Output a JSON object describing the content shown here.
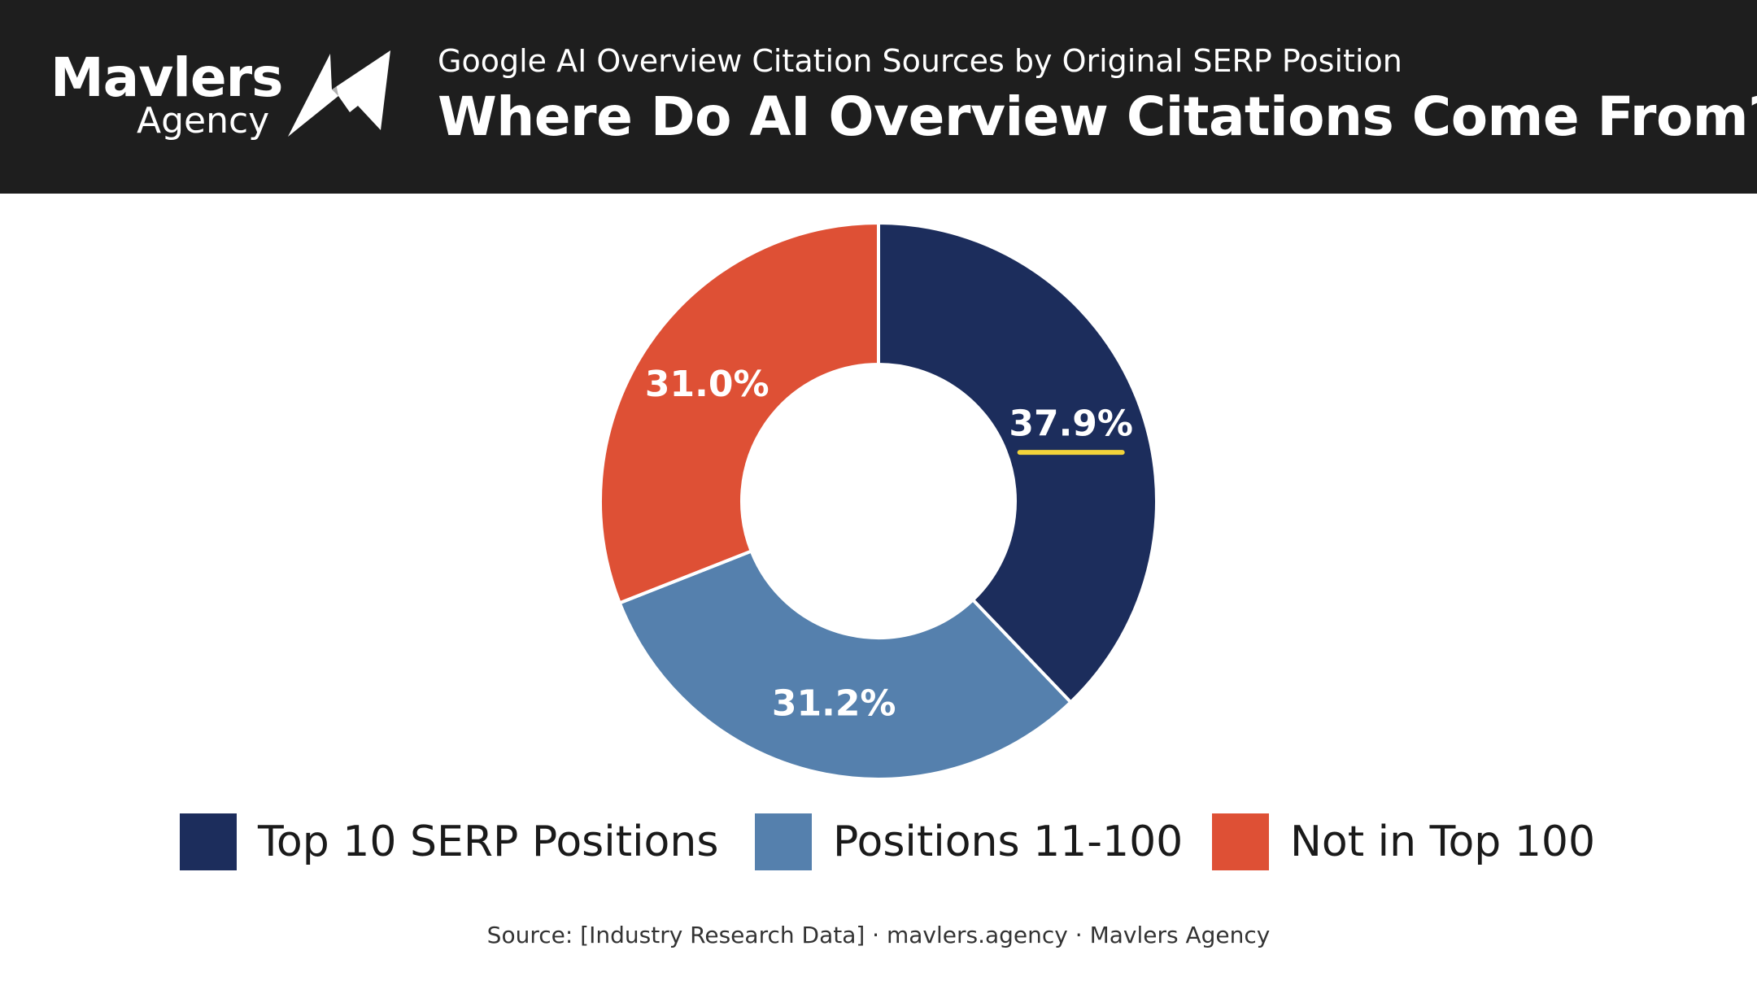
{
  "header": {
    "logo_text": "Mavlers",
    "logo_subtext": "Agency",
    "subtitle": "Google AI Overview Citation Sources by Original SERP Position",
    "title": "Where Do AI Overview Citations Come From?"
  },
  "colors": {
    "header_bg": "#1e1e1e",
    "top10": "#1c2d5c",
    "positions_11_100": "#5580ad",
    "not_top100": "#de5035",
    "highlight": "#f2d33a"
  },
  "chart_data": {
    "type": "pie",
    "donut": true,
    "categories": [
      "Top 10 SERP Positions",
      "Positions 11-100",
      "Not in Top 100"
    ],
    "values": [
      37.9,
      31.2,
      31.0
    ],
    "labels": [
      "37.9%",
      "31.2%",
      "31.0%"
    ],
    "colors": [
      "#1c2d5c",
      "#5580ad",
      "#de5035"
    ],
    "highlighted_slice": "37.9%",
    "legend_position": "bottom"
  },
  "legend": {
    "items": [
      {
        "label": "Top 10 SERP Positions"
      },
      {
        "label": "Positions 11-100"
      },
      {
        "label": "Not in Top 100"
      }
    ]
  },
  "footer": {
    "source": "Source: [Industry Research Data] · mavlers.agency · Mavlers Agency"
  }
}
